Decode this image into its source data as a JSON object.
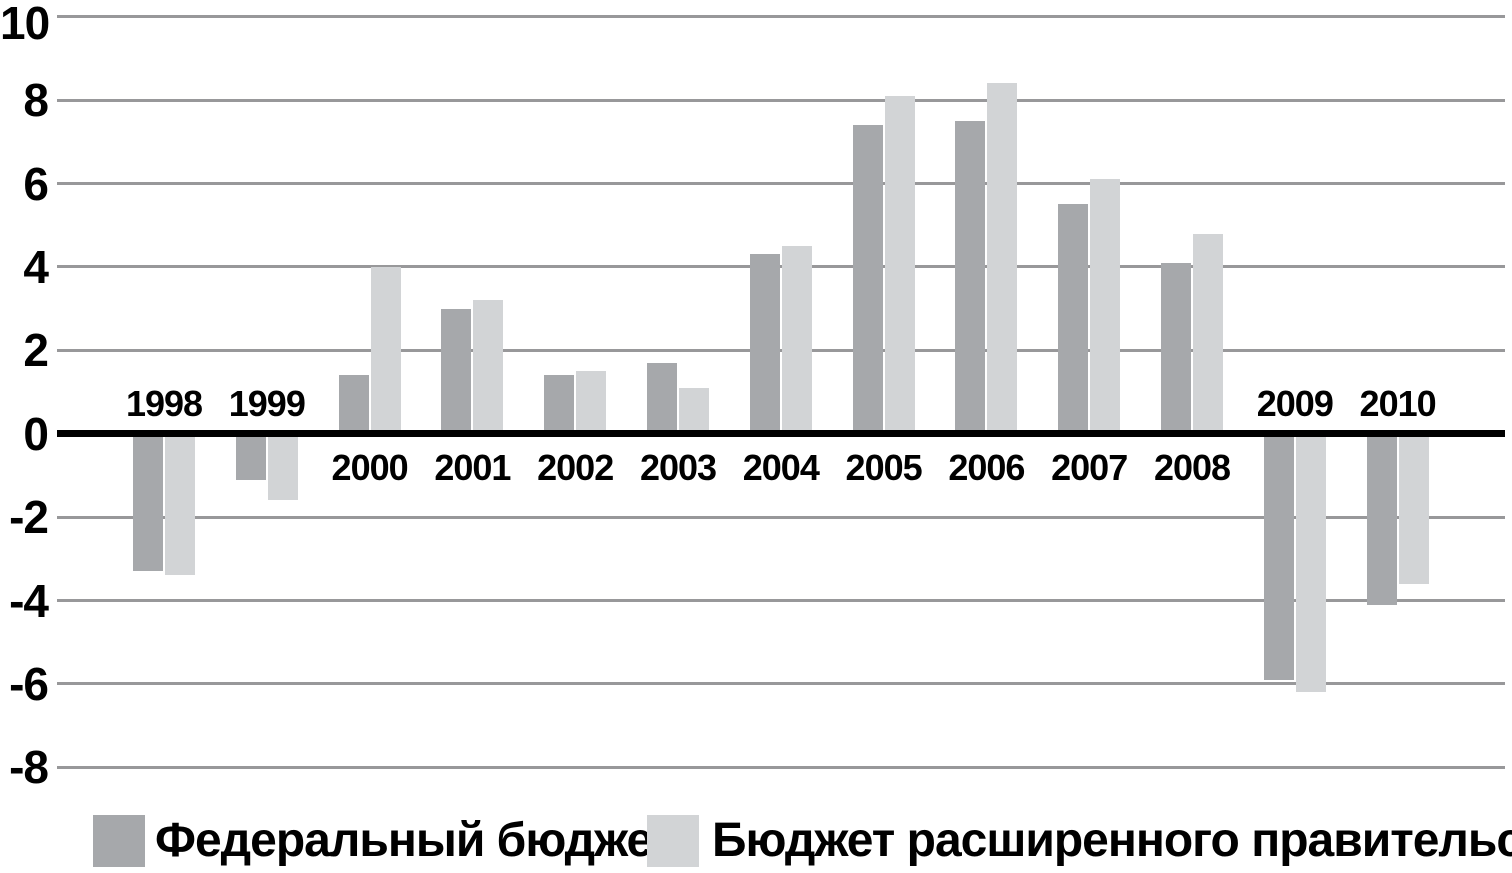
{
  "chart_data": {
    "type": "bar",
    "title": "",
    "xlabel": "",
    "ylabel": "",
    "categories": [
      "1998",
      "1999",
      "2000",
      "2001",
      "2002",
      "2003",
      "2004",
      "2005",
      "2006",
      "2007",
      "2008",
      "2009",
      "2010"
    ],
    "series": [
      {
        "name": "Федеральный бюджет",
        "key": "federal-budget",
        "color": "#a6a8ab",
        "values": [
          -3.3,
          -1.1,
          1.4,
          3.0,
          1.4,
          1.7,
          4.3,
          7.4,
          7.5,
          5.5,
          4.1,
          -5.9,
          -4.1
        ]
      },
      {
        "name": "Бюджет расширенного правительства",
        "key": "general-government-budget",
        "color": "#d2d4d6",
        "values": [
          -3.4,
          -1.6,
          4.0,
          3.2,
          1.5,
          1.1,
          4.5,
          8.1,
          8.4,
          6.1,
          4.8,
          -6.2,
          -3.6
        ]
      }
    ],
    "ylim": [
      -8,
      10
    ],
    "yticks": [
      10,
      8,
      6,
      4,
      2,
      0,
      -2,
      -4,
      -6,
      -8
    ],
    "grid": true,
    "legend_position": "bottom",
    "axis_color": "#000000",
    "gridline_color": "#98989a",
    "label_color": "#000000"
  }
}
